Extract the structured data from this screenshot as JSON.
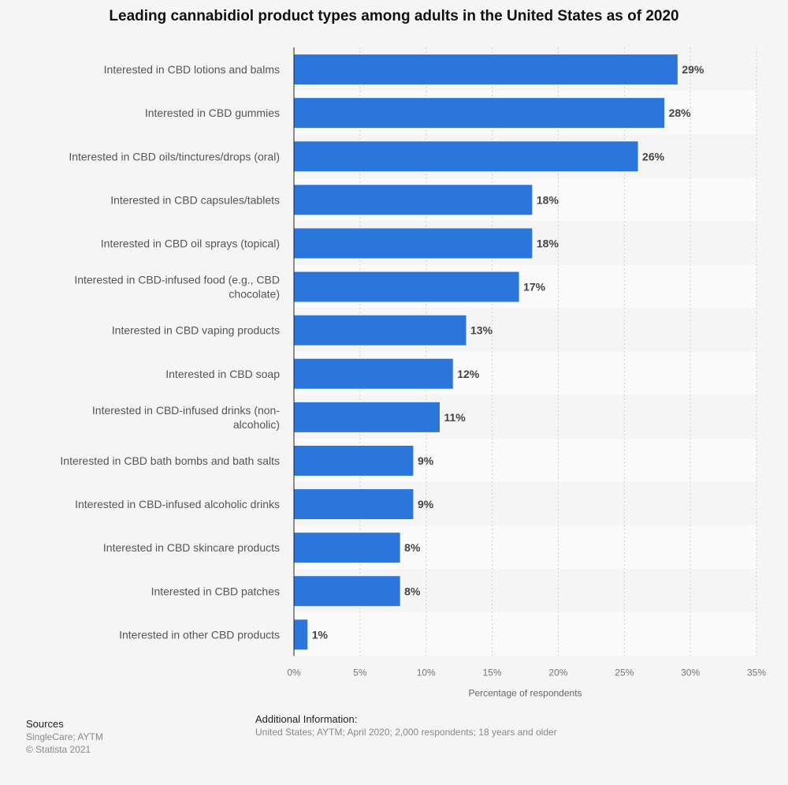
{
  "chart_data": {
    "type": "bar",
    "orientation": "horizontal",
    "title": "Leading cannabidiol product types among adults in the United States as of 2020",
    "xlabel": "Percentage of respondents",
    "ylabel": "",
    "xlim": [
      0,
      35
    ],
    "ticks": [
      0,
      5,
      10,
      15,
      20,
      25,
      30,
      35
    ],
    "tick_labels": [
      "0%",
      "5%",
      "10%",
      "15%",
      "20%",
      "25%",
      "30%",
      "35%"
    ],
    "categories": [
      "Interested in CBD lotions and balms",
      "Interested in CBD gummies",
      "Interested in CBD oils/tinctures/drops (oral)",
      "Interested in CBD capsules/tablets",
      "Interested in CBD oil sprays (topical)",
      "Interested in CBD-infused food (e.g., CBD chocolate)",
      "Interested in CBD vaping products",
      "Interested in CBD soap",
      "Interested in CBD-infused drinks (non-alcoholic)",
      "Interested in CBD bath bombs and bath salts",
      "Interested in CBD-infused alcoholic drinks",
      "Interested in CBD skincare products",
      "Interested in CBD patches",
      "Interested in other CBD products"
    ],
    "display_lines": [
      [
        "Interested in CBD lotions and balms"
      ],
      [
        "Interested in CBD gummies"
      ],
      [
        "Interested in CBD oils/tinctures/drops (oral)"
      ],
      [
        "Interested in CBD capsules/tablets"
      ],
      [
        "Interested in CBD oil sprays (topical)"
      ],
      [
        "Interested in CBD-infused food (e.g., CBD",
        "chocolate)"
      ],
      [
        "Interested in CBD vaping products"
      ],
      [
        "Interested in CBD soap"
      ],
      [
        "Interested in CBD-infused drinks (non-",
        "alcoholic)"
      ],
      [
        "Interested in CBD bath bombs and bath salts"
      ],
      [
        "Interested in CBD-infused alcoholic drinks"
      ],
      [
        "Interested in CBD skincare products"
      ],
      [
        "Interested in CBD patches"
      ],
      [
        "Interested in other CBD products"
      ]
    ],
    "values": [
      29,
      28,
      26,
      18,
      18,
      17,
      13,
      12,
      11,
      9,
      9,
      8,
      8,
      1
    ],
    "value_labels": [
      "29%",
      "28%",
      "26%",
      "18%",
      "18%",
      "17%",
      "13%",
      "12%",
      "11%",
      "9%",
      "9%",
      "8%",
      "8%",
      "1%"
    ],
    "bar_color": "#2a76dd",
    "grid": true
  },
  "footer": {
    "sources_heading": "Sources",
    "sources_line1": "SingleCare; AYTM",
    "sources_line2": "© Statista 2021",
    "additional_heading": "Additional Information:",
    "additional_text": "United States; AYTM; April 2020; 2,000 respondents; 18 years and older"
  }
}
